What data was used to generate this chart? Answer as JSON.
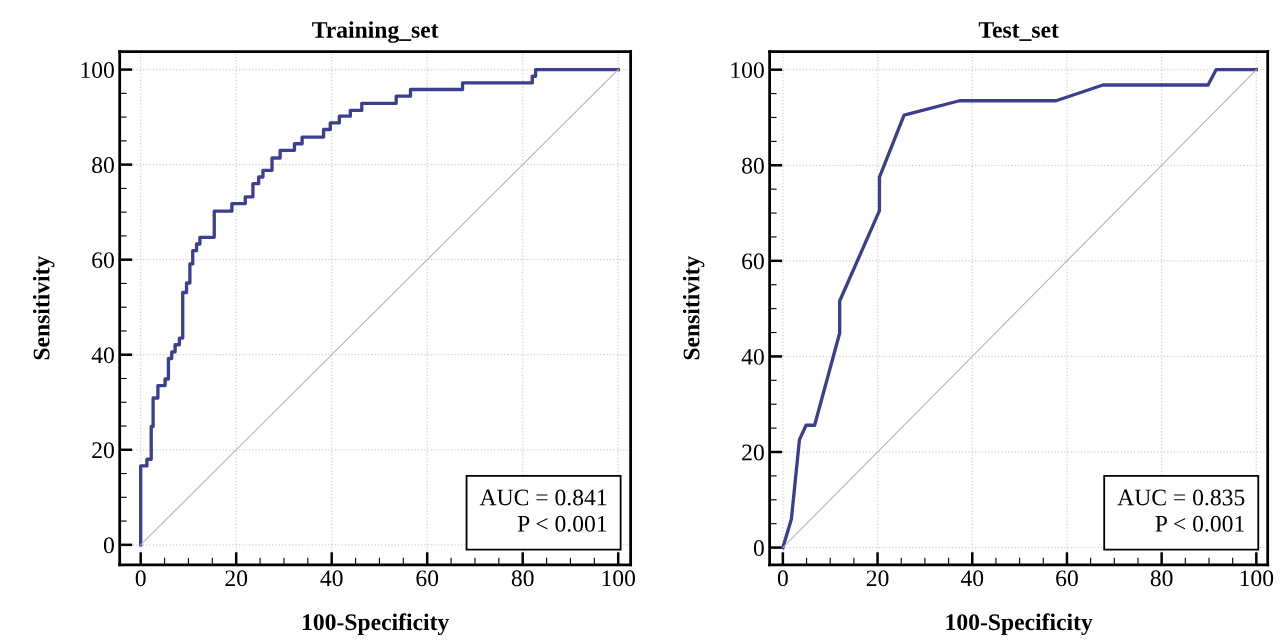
{
  "chart_data": [
    {
      "type": "step",
      "title": "Training_set",
      "xlabel": "100-Specificity",
      "ylabel": "Sensitivity",
      "series": [
        {
          "color": "#3c3f8f",
          "x": [
            0,
            0,
            1.3,
            2.2,
            2.6,
            3.6,
            5.1,
            5.8,
            6.5,
            7.2,
            8.1,
            8.8,
            9.6,
            10.3,
            10.9,
            11.7,
            12.4,
            15.4,
            19.1,
            21.9,
            23.5,
            24.7,
            25.6,
            27.5,
            29.2,
            32.2,
            33.8,
            38.3,
            39.7,
            41.6,
            43.9,
            46.3,
            53.5,
            56.5,
            67.4,
            82.0,
            82.7,
            100
          ],
          "values": [
            0,
            16.6,
            18.0,
            24.9,
            30.9,
            33.5,
            34.9,
            39.2,
            40.6,
            42.1,
            43.5,
            53.1,
            55.1,
            59.1,
            61.9,
            63.3,
            64.7,
            70.2,
            71.8,
            73.2,
            76.0,
            77.4,
            78.8,
            81.4,
            83.0,
            84.4,
            85.8,
            87.4,
            88.8,
            90.2,
            91.4,
            92.9,
            94.4,
            95.8,
            97.2,
            98.6,
            100,
            100
          ]
        },
        {
          "type": "line",
          "color": "#b4b4b4",
          "x": [
            0,
            100
          ],
          "values": [
            0,
            100
          ]
        }
      ],
      "xlim": [
        -4.4,
        102.6
      ],
      "ylim": [
        -4.2,
        103.8
      ],
      "xticks": [
        0,
        {
          "value": 5,
          "label": null
        },
        {
          "value": 10,
          "label": null
        },
        {
          "value": 15,
          "label": null
        },
        20,
        {
          "value": 25,
          "label": null
        },
        {
          "value": 30,
          "label": null
        },
        {
          "value": 35,
          "label": null
        },
        40,
        {
          "value": 45,
          "label": null
        },
        {
          "value": 50,
          "label": null
        },
        {
          "value": 55,
          "label": null
        },
        60,
        {
          "value": 65,
          "label": null
        },
        {
          "value": 70,
          "label": null
        },
        {
          "value": 75,
          "label": null
        },
        80,
        {
          "value": 85,
          "label": null
        },
        {
          "value": 90,
          "label": null
        },
        {
          "value": 95,
          "label": null
        },
        100
      ],
      "yticks": [
        0,
        {
          "value": 5,
          "label": null
        },
        {
          "value": 10,
          "label": null
        },
        {
          "value": 15,
          "label": null
        },
        20,
        {
          "value": 25,
          "label": null
        },
        {
          "value": 30,
          "label": null
        },
        {
          "value": 35,
          "label": null
        },
        40,
        {
          "value": 45,
          "label": null
        },
        {
          "value": 50,
          "label": null
        },
        {
          "value": 55,
          "label": null
        },
        60,
        {
          "value": 65,
          "label": null
        },
        {
          "value": 70,
          "label": null
        },
        {
          "value": 75,
          "label": null
        },
        80,
        {
          "value": 85,
          "label": null
        },
        {
          "value": 90,
          "label": null
        },
        {
          "value": 95,
          "label": null
        },
        100
      ],
      "grid": true,
      "annotations": [
        "AUC = 0.841\nP < 0.001"
      ]
    },
    {
      "type": "line",
      "title": "Test_set",
      "xlabel": "100-Specificity",
      "ylabel": "Sensitivity",
      "series": [
        {
          "color": "#3c3f8f",
          "x": [
            0,
            1.8,
            3.5,
            4.9,
            6.7,
            12,
            12,
            20.4,
            20.4,
            25.6,
            37.3,
            57.7,
            67.6,
            89.8,
            91.5,
            100
          ],
          "values": [
            0,
            6,
            22.6,
            25.6,
            25.6,
            44.9,
            51.6,
            70.5,
            77.5,
            90.5,
            93.5,
            93.5,
            96.8,
            96.8,
            100,
            100
          ]
        },
        {
          "type": "line",
          "color": "#b4b4b4",
          "x": [
            0,
            100
          ],
          "values": [
            0,
            100
          ]
        }
      ],
      "xlim": [
        -2.8,
        102.4
      ],
      "ylim": [
        -3.6,
        103.8
      ],
      "xticks": [
        0,
        {
          "value": 5,
          "label": null
        },
        {
          "value": 10,
          "label": null
        },
        {
          "value": 15,
          "label": null
        },
        20,
        {
          "value": 25,
          "label": null
        },
        {
          "value": 30,
          "label": null
        },
        {
          "value": 35,
          "label": null
        },
        40,
        {
          "value": 45,
          "label": null
        },
        {
          "value": 50,
          "label": null
        },
        {
          "value": 55,
          "label": null
        },
        60,
        {
          "value": 65,
          "label": null
        },
        {
          "value": 70,
          "label": null
        },
        {
          "value": 75,
          "label": null
        },
        80,
        {
          "value": 85,
          "label": null
        },
        {
          "value": 90,
          "label": null
        },
        {
          "value": 95,
          "label": null
        },
        100
      ],
      "yticks": [
        0,
        {
          "value": 5,
          "label": null
        },
        {
          "value": 10,
          "label": null
        },
        {
          "value": 15,
          "label": null
        },
        20,
        {
          "value": 25,
          "label": null
        },
        {
          "value": 30,
          "label": null
        },
        {
          "value": 35,
          "label": null
        },
        40,
        {
          "value": 45,
          "label": null
        },
        {
          "value": 50,
          "label": null
        },
        {
          "value": 55,
          "label": null
        },
        60,
        {
          "value": 65,
          "label": null
        },
        {
          "value": 70,
          "label": null
        },
        {
          "value": 75,
          "label": null
        },
        80,
        {
          "value": 85,
          "label": null
        },
        {
          "value": 90,
          "label": null
        },
        {
          "value": 95,
          "label": null
        },
        100
      ],
      "grid": true,
      "annotations": [
        "AUC = 0.835\nP < 0.001"
      ]
    }
  ]
}
